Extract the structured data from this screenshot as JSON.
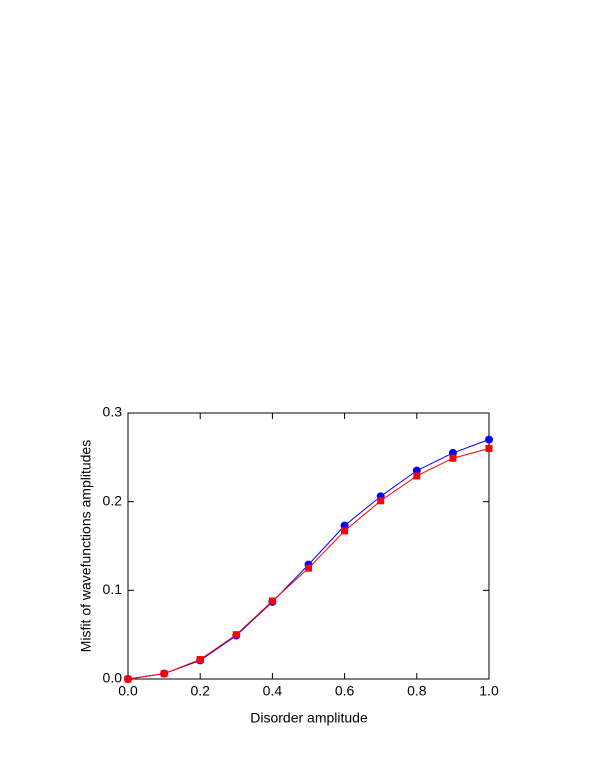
{
  "chart_data": {
    "type": "line",
    "x_label": "Disorder  amplitude",
    "y_label": "Misfit of wavefunctions amplitudes",
    "x": [
      0.0,
      0.1,
      0.2,
      0.3,
      0.4,
      0.5,
      0.6,
      0.7,
      0.8,
      0.9,
      1.0
    ],
    "series": [
      {
        "color": "#0000ff",
        "marker": "circle",
        "values": [
          0.0,
          0.006,
          0.021,
          0.049,
          0.087,
          0.129,
          0.173,
          0.206,
          0.235,
          0.255,
          0.27
        ]
      },
      {
        "color": "#ff0000",
        "marker": "square",
        "values": [
          0.0,
          0.006,
          0.022,
          0.05,
          0.088,
          0.125,
          0.167,
          0.201,
          0.229,
          0.249,
          0.26
        ]
      }
    ],
    "xlim": [
      0,
      1.0
    ],
    "xticks": [
      {
        "value": 0,
        "label": "0.0"
      },
      0.2,
      0.4,
      0.6,
      0.8,
      {
        "value": 1,
        "label": "1.0"
      }
    ],
    "ylim": [
      0,
      0.3
    ],
    "yticks": [
      {
        "value": 0,
        "label": "0.0"
      },
      0.1,
      0.2,
      0.3
    ]
  }
}
